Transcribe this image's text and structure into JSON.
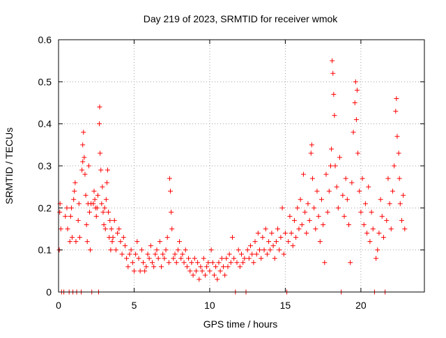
{
  "chart_data": {
    "type": "scatter",
    "title": "Day 219 of 2023, SRMTID for receiver wmok",
    "xlabel": "GPS time / hours",
    "ylabel": "SRMTID / TECUs",
    "xlim": [
      0,
      24.2
    ],
    "ylim": [
      0,
      0.6
    ],
    "xticks": [
      0,
      5,
      10,
      15,
      20
    ],
    "yticks": [
      0,
      0.1,
      0.2,
      0.3,
      0.4,
      0.5,
      0.6
    ],
    "xtick_labels": [
      "0",
      "5",
      "10",
      "15",
      "20"
    ],
    "ytick_labels": [
      "0",
      "0.1",
      "0.2",
      "0.3",
      "0.4",
      "0.5",
      "0.6"
    ],
    "grid": true,
    "marker": "plus",
    "color": "#ff0000",
    "series": [
      {
        "name": "SRMTID",
        "points": [
          [
            0.05,
            0.1
          ],
          [
            0.08,
            0.19
          ],
          [
            0.1,
            0.21
          ],
          [
            0.15,
            0.15
          ],
          [
            0.2,
            0.0
          ],
          [
            0.35,
            0.0
          ],
          [
            0.45,
            0.18
          ],
          [
            0.55,
            0.2
          ],
          [
            0.6,
            0.15
          ],
          [
            0.7,
            0.0
          ],
          [
            0.75,
            0.12
          ],
          [
            0.8,
            0.18
          ],
          [
            0.85,
            0.2
          ],
          [
            0.9,
            0.13
          ],
          [
            0.95,
            0.0
          ],
          [
            1.0,
            0.22
          ],
          [
            1.05,
            0.24
          ],
          [
            1.1,
            0.26
          ],
          [
            1.15,
            0.12
          ],
          [
            1.2,
            0.0
          ],
          [
            1.3,
            0.17
          ],
          [
            1.35,
            0.21
          ],
          [
            1.4,
            0.13
          ],
          [
            1.5,
            0.0
          ],
          [
            1.55,
            0.29
          ],
          [
            1.6,
            0.31
          ],
          [
            1.6,
            0.35
          ],
          [
            1.65,
            0.38
          ],
          [
            1.7,
            0.32
          ],
          [
            1.75,
            0.28
          ],
          [
            1.8,
            0.23
          ],
          [
            1.85,
            0.16
          ],
          [
            1.9,
            0.12
          ],
          [
            1.95,
            0.21
          ],
          [
            2.0,
            0.3
          ],
          [
            2.05,
            0.19
          ],
          [
            2.1,
            0.1
          ],
          [
            2.15,
            0.21
          ],
          [
            2.2,
            0.0
          ],
          [
            2.3,
            0.21
          ],
          [
            2.35,
            0.24
          ],
          [
            2.4,
            0.22
          ],
          [
            2.45,
            0.2
          ],
          [
            2.5,
            0.18
          ],
          [
            2.55,
            0.2
          ],
          [
            2.6,
            0.23
          ],
          [
            2.65,
            0.0
          ],
          [
            2.7,
            0.4
          ],
          [
            2.72,
            0.44
          ],
          [
            2.75,
            0.33
          ],
          [
            2.8,
            0.29
          ],
          [
            2.85,
            0.21
          ],
          [
            2.9,
            0.25
          ],
          [
            2.95,
            0.19
          ],
          [
            3.0,
            0.16
          ],
          [
            3.05,
            0.2
          ],
          [
            3.1,
            0.15
          ],
          [
            3.15,
            0.22
          ],
          [
            3.2,
            0.26
          ],
          [
            3.25,
            0.29
          ],
          [
            3.3,
            0.19
          ],
          [
            3.35,
            0.13
          ],
          [
            3.4,
            0.17
          ],
          [
            3.45,
            0.1
          ],
          [
            3.5,
            0.15
          ],
          [
            3.55,
            0.12
          ],
          [
            3.6,
            0.13
          ],
          [
            3.7,
            0.17
          ],
          [
            3.8,
            0.1
          ],
          [
            3.9,
            0.14
          ],
          [
            4.0,
            0.15
          ],
          [
            4.1,
            0.12
          ],
          [
            4.2,
            0.09
          ],
          [
            4.3,
            0.13
          ],
          [
            4.4,
            0.11
          ],
          [
            4.5,
            0.08
          ],
          [
            4.6,
            0.06
          ],
          [
            4.7,
            0.09
          ],
          [
            4.8,
            0.1
          ],
          [
            4.9,
            0.07
          ],
          [
            5.0,
            0.05
          ],
          [
            5.1,
            0.09
          ],
          [
            5.2,
            0.12
          ],
          [
            5.3,
            0.08
          ],
          [
            5.4,
            0.05
          ],
          [
            5.5,
            0.1
          ],
          [
            5.6,
            0.07
          ],
          [
            5.7,
            0.05
          ],
          [
            5.8,
            0.06
          ],
          [
            5.9,
            0.09
          ],
          [
            6.0,
            0.08
          ],
          [
            6.1,
            0.11
          ],
          [
            6.2,
            0.07
          ],
          [
            6.3,
            0.06
          ],
          [
            6.4,
            0.09
          ],
          [
            6.5,
            0.1
          ],
          [
            6.6,
            0.08
          ],
          [
            6.7,
            0.12
          ],
          [
            6.8,
            0.06
          ],
          [
            6.9,
            0.09
          ],
          [
            7.0,
            0.08
          ],
          [
            7.1,
            0.1
          ],
          [
            7.2,
            0.13
          ],
          [
            7.3,
            0.07
          ],
          [
            7.35,
            0.27
          ],
          [
            7.4,
            0.24
          ],
          [
            7.45,
            0.19
          ],
          [
            7.5,
            0.15
          ],
          [
            7.6,
            0.08
          ],
          [
            7.7,
            0.09
          ],
          [
            7.8,
            0.07
          ],
          [
            7.9,
            0.1
          ],
          [
            8.0,
            0.12
          ],
          [
            8.1,
            0.08
          ],
          [
            8.2,
            0.09
          ],
          [
            8.3,
            0.07
          ],
          [
            8.4,
            0.1
          ],
          [
            8.5,
            0.06
          ],
          [
            8.6,
            0.08
          ],
          [
            8.7,
            0.05
          ],
          [
            8.8,
            0.07
          ],
          [
            8.9,
            0.04
          ],
          [
            9.0,
            0.08
          ],
          [
            9.1,
            0.05
          ],
          [
            9.2,
            0.07
          ],
          [
            9.3,
            0.03
          ],
          [
            9.4,
            0.06
          ],
          [
            9.5,
            0.05
          ],
          [
            9.6,
            0.08
          ],
          [
            9.7,
            0.04
          ],
          [
            9.8,
            0.06
          ],
          [
            9.9,
            0.07
          ],
          [
            10.0,
            0.05
          ],
          [
            10.1,
            0.1
          ],
          [
            10.2,
            0.07
          ],
          [
            10.3,
            0.04
          ],
          [
            10.4,
            0.06
          ],
          [
            10.5,
            0.03
          ],
          [
            10.6,
            0.07
          ],
          [
            10.7,
            0.05
          ],
          [
            10.8,
            0.08
          ],
          [
            10.9,
            0.06
          ],
          [
            11.0,
            0.04
          ],
          [
            11.1,
            0.08
          ],
          [
            11.2,
            0.06
          ],
          [
            11.3,
            0.09
          ],
          [
            11.4,
            0.07
          ],
          [
            11.5,
            0.13
          ],
          [
            11.6,
            0.08
          ],
          [
            11.7,
            0.0
          ],
          [
            11.8,
            0.07
          ],
          [
            11.9,
            0.1
          ],
          [
            12.0,
            0.06
          ],
          [
            12.1,
            0.09
          ],
          [
            12.2,
            0.07
          ],
          [
            12.3,
            0.08
          ],
          [
            12.4,
            0.0
          ],
          [
            12.5,
            0.1
          ],
          [
            12.6,
            0.08
          ],
          [
            12.7,
            0.11
          ],
          [
            12.8,
            0.09
          ],
          [
            12.9,
            0.07
          ],
          [
            13.0,
            0.12
          ],
          [
            13.1,
            0.09
          ],
          [
            13.2,
            0.14
          ],
          [
            13.3,
            0.1
          ],
          [
            13.4,
            0.08
          ],
          [
            13.5,
            0.13
          ],
          [
            13.6,
            0.1
          ],
          [
            13.7,
            0.15
          ],
          [
            13.8,
            0.09
          ],
          [
            13.9,
            0.12
          ],
          [
            14.0,
            0.1
          ],
          [
            14.1,
            0.14
          ],
          [
            14.2,
            0.11
          ],
          [
            14.3,
            0.08
          ],
          [
            14.4,
            0.12
          ],
          [
            14.5,
            0.15
          ],
          [
            14.6,
            0.1
          ],
          [
            14.7,
            0.13
          ],
          [
            14.8,
            0.2
          ],
          [
            14.9,
            0.09
          ],
          [
            15.0,
            0.14
          ],
          [
            15.1,
            0.0
          ],
          [
            15.2,
            0.12
          ],
          [
            15.3,
            0.18
          ],
          [
            15.4,
            0.14
          ],
          [
            15.5,
            0.11
          ],
          [
            15.6,
            0.17
          ],
          [
            15.7,
            0.13
          ],
          [
            15.8,
            0.2
          ],
          [
            15.9,
            0.15
          ],
          [
            16.0,
            0.22
          ],
          [
            16.1,
            0.16
          ],
          [
            16.2,
            0.28
          ],
          [
            16.3,
            0.19
          ],
          [
            16.4,
            0.14
          ],
          [
            16.5,
            0.21
          ],
          [
            16.6,
            0.17
          ],
          [
            16.7,
            0.33
          ],
          [
            16.75,
            0.35
          ],
          [
            16.8,
            0.27
          ],
          [
            16.9,
            0.2
          ],
          [
            17.0,
            0.15
          ],
          [
            17.1,
            0.24
          ],
          [
            17.2,
            0.18
          ],
          [
            17.3,
            0.12
          ],
          [
            17.4,
            0.22
          ],
          [
            17.5,
            0.16
          ],
          [
            17.6,
            0.07
          ],
          [
            17.7,
            0.28
          ],
          [
            17.8,
            0.19
          ],
          [
            17.9,
            0.24
          ],
          [
            18.0,
            0.3
          ],
          [
            18.05,
            0.34
          ],
          [
            18.1,
            0.55
          ],
          [
            18.15,
            0.52
          ],
          [
            18.2,
            0.47
          ],
          [
            18.25,
            0.42
          ],
          [
            18.3,
            0.3
          ],
          [
            18.4,
            0.25
          ],
          [
            18.5,
            0.2
          ],
          [
            18.6,
            0.32
          ],
          [
            18.7,
            0.0
          ],
          [
            18.8,
            0.23
          ],
          [
            18.9,
            0.18
          ],
          [
            19.0,
            0.27
          ],
          [
            19.1,
            0.22
          ],
          [
            19.2,
            0.16
          ],
          [
            19.3,
            0.07
          ],
          [
            19.4,
            0.26
          ],
          [
            19.5,
            0.38
          ],
          [
            19.6,
            0.45
          ],
          [
            19.65,
            0.5
          ],
          [
            19.7,
            0.41
          ],
          [
            19.75,
            0.48
          ],
          [
            19.8,
            0.33
          ],
          [
            19.9,
            0.24
          ],
          [
            20.0,
            0.19
          ],
          [
            20.1,
            0.27
          ],
          [
            20.2,
            0.16
          ],
          [
            20.3,
            0.21
          ],
          [
            20.4,
            0.14
          ],
          [
            20.5,
            0.25
          ],
          [
            20.6,
            0.12
          ],
          [
            20.7,
            0.19
          ],
          [
            20.8,
            0.15
          ],
          [
            20.9,
            0.0
          ],
          [
            21.0,
            0.08
          ],
          [
            21.1,
            0.1
          ],
          [
            21.2,
            0.14
          ],
          [
            21.3,
            0.22
          ],
          [
            21.4,
            0.18
          ],
          [
            21.5,
            0.13
          ],
          [
            21.6,
            0.0
          ],
          [
            21.7,
            0.17
          ],
          [
            21.8,
            0.27
          ],
          [
            21.9,
            0.21
          ],
          [
            22.0,
            0.15
          ],
          [
            22.1,
            0.24
          ],
          [
            22.2,
            0.3
          ],
          [
            22.3,
            0.43
          ],
          [
            22.35,
            0.46
          ],
          [
            22.4,
            0.37
          ],
          [
            22.5,
            0.33
          ],
          [
            22.55,
            0.27
          ],
          [
            22.6,
            0.21
          ],
          [
            22.7,
            0.17
          ],
          [
            22.8,
            0.23
          ],
          [
            22.9,
            0.15
          ]
        ]
      }
    ]
  }
}
